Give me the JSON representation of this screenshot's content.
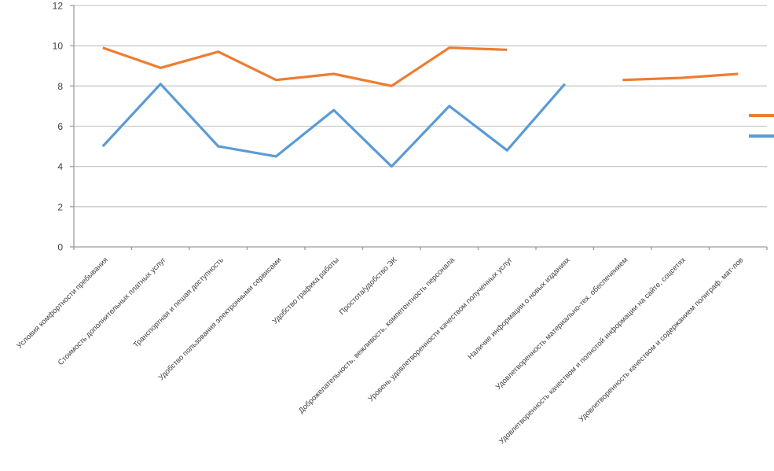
{
  "chart_data": {
    "type": "line",
    "title": "",
    "categories": [
      "Условия комфортности пребывания",
      "Стоимость дополнительных платных услуг",
      "Транспортная и пешая доступность",
      "Удобство пользования электронными сервисами",
      "Удобство графика работы",
      "Простота/удобство ЭК",
      "Доброжелательность, вежливость, компетентность персонала",
      "Уровень удовлетворенности качеством полученных услуг",
      "Наличие информации о новых изданиях",
      "Удовлетворенность материально-тех. обеспечением",
      "Удовлетворенность качеством и полнотой информации на сайте, соцсетях",
      "Удовлетворенность качеством и содержанием полиграф. мат-лов"
    ],
    "series": [
      {
        "name": "",
        "color": "#ED7D31",
        "values": [
          9.9,
          8.9,
          9.7,
          8.3,
          8.6,
          8.0,
          9.9,
          9.8,
          null,
          8.3,
          8.4,
          8.6
        ]
      },
      {
        "name": "",
        "color": "#5B9BD5",
        "values": [
          5.0,
          8.1,
          5.0,
          4.5,
          6.8,
          4.0,
          7.0,
          4.8,
          8.1,
          null,
          null,
          null
        ]
      }
    ],
    "ylim": [
      0,
      12
    ],
    "ytick_step": 2,
    "ytick_labels": [
      "0",
      "2",
      "4",
      "6",
      "8",
      "10",
      "12"
    ],
    "xlabel": "",
    "ylabel": "",
    "grid": true,
    "legend": {
      "position": "right",
      "labels_cut_off": true
    }
  },
  "colors": {
    "background": "#FFFFFF",
    "gridline": "#C9C9C9",
    "axis": "#9C9C9C",
    "tick_text": "#404040",
    "series1": "#ED7D31",
    "series2": "#5B9BD5"
  }
}
